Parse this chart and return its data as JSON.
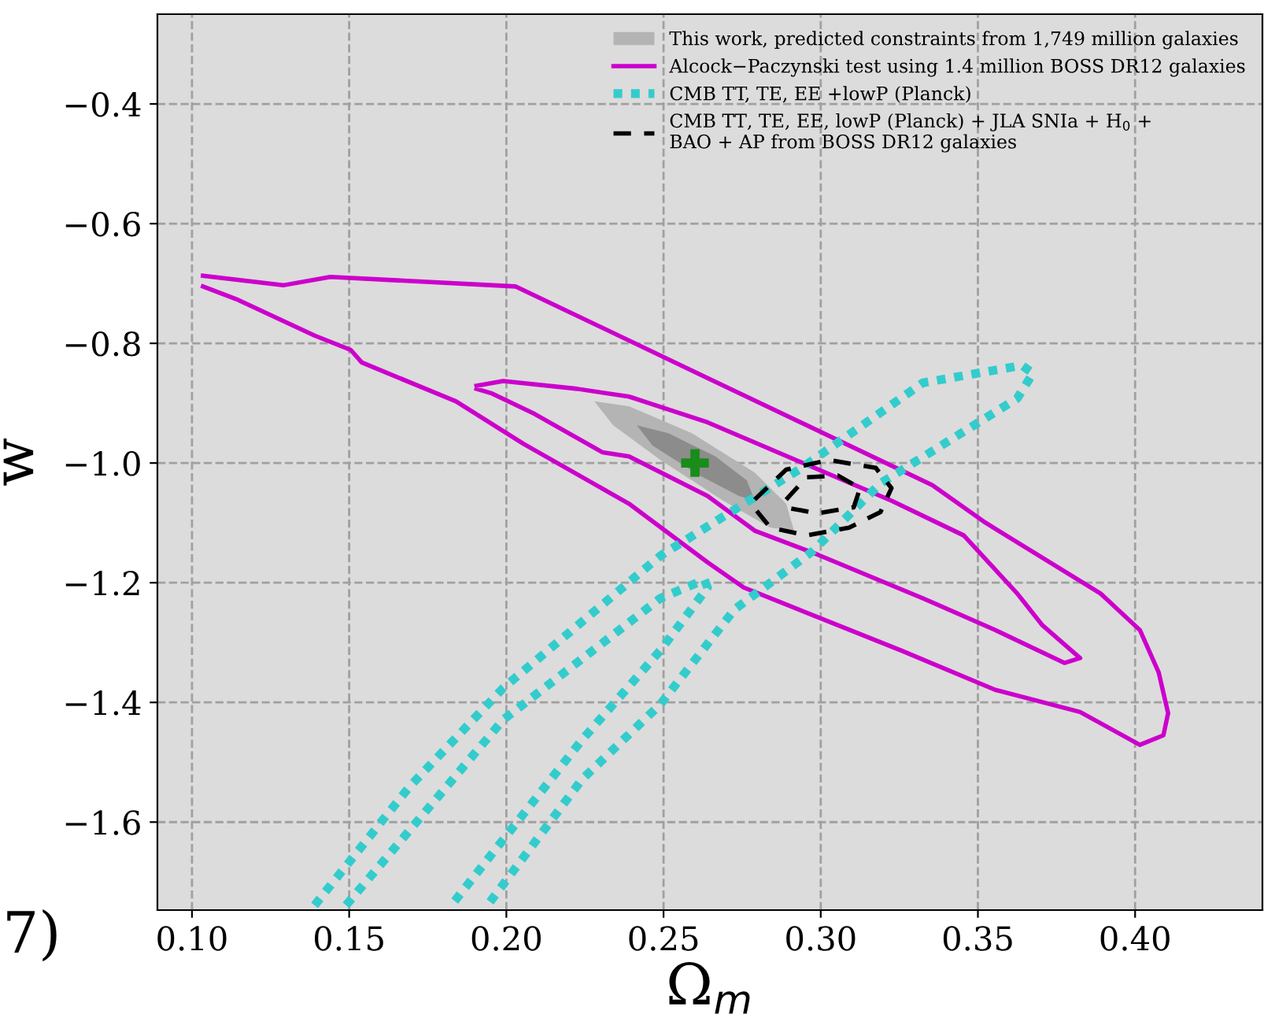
{
  "chart_data": {
    "type": "line",
    "xlabel": "Ω$_{m}$",
    "ylabel": "w",
    "xlim": [
      0.089,
      0.4405
    ],
    "ylim": [
      -1.747,
      -0.25
    ],
    "xticks": [
      {
        "value": 0.1,
        "label": "0.10"
      },
      {
        "value": 0.15,
        "label": "0.15"
      },
      {
        "value": 0.2,
        "label": "0.20"
      },
      {
        "value": 0.25,
        "label": "0.25"
      },
      {
        "value": 0.3,
        "label": "0.30"
      },
      {
        "value": 0.35,
        "label": "0.35"
      },
      {
        "value": 0.4,
        "label": "0.40"
      }
    ],
    "yticks": [
      {
        "value": -1.6,
        "label": "−1.6"
      },
      {
        "value": -1.4,
        "label": "−1.4"
      },
      {
        "value": -1.2,
        "label": "−1.2"
      },
      {
        "value": -1.0,
        "label": "−1.0"
      },
      {
        "value": -0.8,
        "label": "−0.8"
      },
      {
        "value": -0.6,
        "label": "−0.6"
      },
      {
        "value": -0.4,
        "label": "−0.4"
      }
    ],
    "grid": true,
    "legend": "top right",
    "annotations": [
      {
        "text": "7)"
      }
    ],
    "series": [
      {
        "type": "area",
        "name": "This work, predicted constraints from 1,749 million galaxies",
        "color": "#b4b4b4",
        "x": [
          0.228,
          0.239,
          0.259,
          0.279,
          0.289,
          0.2915,
          0.284,
          0.269,
          0.249,
          0.234,
          0.228
        ],
        "values": [
          -0.897,
          -0.905,
          -0.95,
          -1.016,
          -1.068,
          -1.113,
          -1.108,
          -1.063,
          -0.995,
          -0.937,
          -0.897
        ]
      },
      {
        "type": "area",
        "color": "#8c8c8c",
        "x": [
          0.2415,
          0.2515,
          0.2665,
          0.2765,
          0.279,
          0.274,
          0.2615,
          0.2465,
          0.2415
        ],
        "values": [
          -0.937,
          -0.95,
          -0.989,
          -1.029,
          -1.063,
          -1.055,
          -1.021,
          -0.971,
          -0.937
        ]
      },
      {
        "name": "Alcock−Paczynski test using 1.4 million BOSS DR12 galaxies",
        "color": "#cc00cc",
        "line_style": "solid",
        "x": [
          0.1035,
          0.129,
          0.144,
          0.203,
          0.264,
          0.3355,
          0.3525,
          0.389,
          0.4015,
          0.4075,
          0.4105,
          0.409,
          0.4015,
          0.3825,
          0.3555,
          0.3255,
          0.2755,
          0.264,
          0.239,
          0.2055,
          0.184,
          0.154,
          0.1505,
          0.139,
          0.114,
          0.1035
        ],
        "values": [
          -0.687,
          -0.703,
          -0.689,
          -0.705,
          -0.858,
          -1.037,
          -1.1,
          -1.218,
          -1.279,
          -1.35,
          -1.418,
          -1.455,
          -1.471,
          -1.416,
          -1.379,
          -1.313,
          -1.208,
          -1.166,
          -1.068,
          -0.968,
          -0.897,
          -0.832,
          -0.811,
          -0.787,
          -0.726,
          -0.705
        ]
      },
      {
        "color": "#cc00cc",
        "line_style": "solid",
        "x": [
          0.1905,
          0.199,
          0.2225,
          0.239,
          0.264,
          0.3225,
          0.3455,
          0.3625,
          0.3705,
          0.3825,
          0.3775,
          0.3555,
          0.3325,
          0.299,
          0.279,
          0.264,
          0.239,
          0.2305,
          0.209,
          0.1955,
          0.1905
        ],
        "values": [
          -0.871,
          -0.863,
          -0.876,
          -0.889,
          -0.932,
          -1.063,
          -1.121,
          -1.218,
          -1.271,
          -1.326,
          -1.334,
          -1.279,
          -1.226,
          -1.153,
          -1.113,
          -1.055,
          -0.989,
          -0.982,
          -0.918,
          -0.884,
          -0.876
        ]
      },
      {
        "name": "CMB TT, TE, EE +lowP (Planck)",
        "color": "#33cccc",
        "line_style": "dotted",
        "x": [
          0.139,
          0.169,
          0.199,
          0.249,
          0.294,
          0.3325,
          0.364,
          0.3675,
          0.3625,
          0.319,
          0.2975,
          0.2725,
          0.249,
          0.224,
          0.194
        ],
        "values": [
          -1.739,
          -1.542,
          -1.376,
          -1.155,
          -1.008,
          -0.866,
          -0.837,
          -0.85,
          -0.892,
          -1.034,
          -1.147,
          -1.245,
          -1.403,
          -1.529,
          -1.739
        ]
      },
      {
        "color": "#33cccc",
        "line_style": "dotted",
        "x": [
          0.149,
          0.199,
          0.249,
          0.263,
          0.264,
          0.249,
          0.224,
          0.1825
        ],
        "values": [
          -1.739,
          -1.429,
          -1.226,
          -1.195,
          -1.208,
          -1.313,
          -1.463,
          -1.739
        ]
      },
      {
        "name": "CMB TT, TE, EE, lowP (Planck) + JLA SNIa + H$_{0}$ +\nBAO + AP from BOSS DR12 galaxies",
        "color": "#000000",
        "line_style": "dashed",
        "x": [
          0.279,
          0.289,
          0.3025,
          0.3175,
          0.3225,
          0.319,
          0.309,
          0.2955,
          0.284,
          0.279
        ],
        "values": [
          -1.061,
          -1.011,
          -0.995,
          -1.008,
          -1.042,
          -1.082,
          -1.108,
          -1.121,
          -1.108,
          -1.076
        ]
      },
      {
        "color": "#000000",
        "line_style": "dashed",
        "x": [
          0.289,
          0.2955,
          0.3055,
          0.3125,
          0.3105,
          0.299,
          0.2905
        ],
        "values": [
          -1.061,
          -1.024,
          -1.021,
          -1.042,
          -1.074,
          -1.084,
          -1.076
        ]
      },
      {
        "type": "scatter",
        "color": "#1a8c1a",
        "marker": "cross",
        "x": [
          0.26
        ],
        "values": [
          -1.0
        ]
      }
    ]
  }
}
